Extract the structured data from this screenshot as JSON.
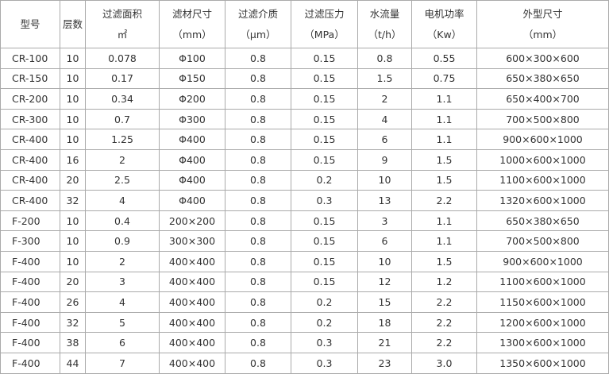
{
  "table": {
    "header": [
      [
        "型号"
      ],
      [
        "层数"
      ],
      [
        "过滤面积",
        "㎡"
      ],
      [
        "滤材尺寸",
        "（mm）"
      ],
      [
        "过滤介质",
        "（μm）"
      ],
      [
        "过滤压力",
        "（MPa）"
      ],
      [
        "水流量",
        "（t/h）"
      ],
      [
        "电机功率",
        "（Kw）"
      ],
      [
        "外型尺寸",
        "（mm）"
      ]
    ],
    "rows": [
      [
        "CR-100",
        "10",
        "0.078",
        "Φ100",
        "0.8",
        "0.15",
        "0.8",
        "0.55",
        "600×300×600"
      ],
      [
        "CR-150",
        "10",
        "0.17",
        "Φ150",
        "0.8",
        "0.15",
        "1.5",
        "0.75",
        "650×380×650"
      ],
      [
        "CR-200",
        "10",
        "0.34",
        "Φ200",
        "0.8",
        "0.15",
        "2",
        "1.1",
        "650×400×700"
      ],
      [
        "CR-300",
        "10",
        "0.7",
        "Φ300",
        "0.8",
        "0.15",
        "4",
        "1.1",
        "700×500×800"
      ],
      [
        "CR-400",
        "10",
        "1.25",
        "Φ400",
        "0.8",
        "0.15",
        "6",
        "1.1",
        "900×600×1000"
      ],
      [
        "CR-400",
        "16",
        "2",
        "Φ400",
        "0.8",
        "0.15",
        "9",
        "1.5",
        "1000×600×1000"
      ],
      [
        "CR-400",
        "20",
        "2.5",
        "Φ400",
        "0.8",
        "0.2",
        "10",
        "1.5",
        "1100×600×1000"
      ],
      [
        "CR-400",
        "32",
        "4",
        "Φ400",
        "0.8",
        "0.3",
        "13",
        "2.2",
        "1320×600×1000"
      ],
      [
        "F-200",
        "10",
        "0.4",
        "200×200",
        "0.8",
        "0.15",
        "3",
        "1.1",
        "650×380×650"
      ],
      [
        "F-300",
        "10",
        "0.9",
        "300×300",
        "0.8",
        "0.15",
        "6",
        "1.1",
        "700×500×800"
      ],
      [
        "F-400",
        "10",
        "2",
        "400×400",
        "0.8",
        "0.15",
        "10",
        "1.5",
        "900×600×1000"
      ],
      [
        "F-400",
        "20",
        "3",
        "400×400",
        "0.8",
        "0.15",
        "12",
        "1.2",
        "1100×600×1000"
      ],
      [
        "F-400",
        "26",
        "4",
        "400×400",
        "0.8",
        "0.2",
        "15",
        "2.2",
        "1150×600×1000"
      ],
      [
        "F-400",
        "32",
        "5",
        "400×400",
        "0.8",
        "0.2",
        "18",
        "2.2",
        "1200×600×1000"
      ],
      [
        "F-400",
        "38",
        "6",
        "400×400",
        "0.8",
        "0.3",
        "21",
        "2.2",
        "1300×600×1000"
      ],
      [
        "F-400",
        "44",
        "7",
        "400×400",
        "0.8",
        "0.3",
        "23",
        "3.0",
        "1350×600×1000"
      ]
    ]
  }
}
